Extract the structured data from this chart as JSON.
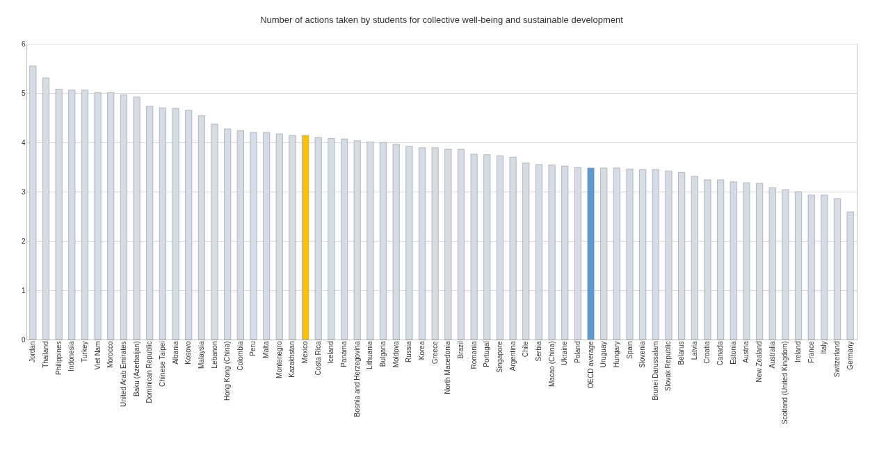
{
  "chart_data": {
    "type": "bar",
    "title": "Number of actions taken by students for collective well-being and sustainable development",
    "categories": [
      "Jordan",
      "Thailand",
      "Philippines",
      "Indonesia",
      "Turkey",
      "Viet Nam",
      "Morocco",
      "United Arab Emirates",
      "Baku (Azerbaijan)",
      "Dominican Republic",
      "Chinese Taipei",
      "Albania",
      "Kosovo",
      "Malaysia",
      "Lebanon",
      "Hong Kong (China)",
      "Colombia",
      "Peru",
      "Malta",
      "Montenegro",
      "Kazakhstan",
      "Mexico",
      "Costa Rica",
      "Iceland",
      "Panama",
      "Bosnia and Herzegovina",
      "Lithuania",
      "Bulgaria",
      "Moldova",
      "Russia",
      "Korea",
      "Greece",
      "North Macedonia",
      "Brazil",
      "Romania",
      "Portugal",
      "Singapore",
      "Argentina",
      "Chile",
      "Serbia",
      "Macao (China)",
      "Ukraine",
      "Poland",
      "OECD average",
      "Uruguay",
      "Hungary",
      "Spain",
      "Slovenia",
      "Brunei Darussalam",
      "Slovak Republic",
      "Belarus",
      "Latvia",
      "Croatia",
      "Canada",
      "Estonia",
      "Austria",
      "New Zealand",
      "Australia",
      "Scotland (United Kingdom)",
      "Ireland",
      "France",
      "Italy",
      "Switzerland",
      "Germany"
    ],
    "values": [
      5.55,
      5.31,
      5.08,
      5.06,
      5.06,
      5.01,
      5.01,
      4.96,
      4.92,
      4.73,
      4.7,
      4.69,
      4.65,
      4.54,
      4.37,
      4.27,
      4.24,
      4.2,
      4.2,
      4.17,
      4.14,
      4.14,
      4.1,
      4.08,
      4.07,
      4.03,
      4.01,
      4.0,
      3.96,
      3.92,
      3.89,
      3.89,
      3.86,
      3.86,
      3.76,
      3.75,
      3.73,
      3.7,
      3.58,
      3.55,
      3.54,
      3.52,
      3.49,
      3.48,
      3.48,
      3.48,
      3.46,
      3.45,
      3.45,
      3.42,
      3.39,
      3.31,
      3.24,
      3.24,
      3.2,
      3.18,
      3.17,
      3.08,
      3.04,
      3.0,
      2.93,
      2.93,
      2.86,
      2.59
    ],
    "colors": [
      "#d6dce4",
      "#d6dce4",
      "#d6dce4",
      "#d6dce4",
      "#d6dce4",
      "#d6dce4",
      "#d6dce4",
      "#d6dce4",
      "#d6dce4",
      "#d6dce4",
      "#d6dce4",
      "#d6dce4",
      "#d6dce4",
      "#d6dce4",
      "#d6dce4",
      "#d6dce4",
      "#d6dce4",
      "#d6dce4",
      "#d6dce4",
      "#d6dce4",
      "#d6dce4",
      "#ffc000",
      "#d6dce4",
      "#d6dce4",
      "#d6dce4",
      "#d6dce4",
      "#d6dce4",
      "#d6dce4",
      "#d6dce4",
      "#d6dce4",
      "#d6dce4",
      "#d6dce4",
      "#d6dce4",
      "#d6dce4",
      "#d6dce4",
      "#d6dce4",
      "#d6dce4",
      "#d6dce4",
      "#d6dce4",
      "#d6dce4",
      "#d6dce4",
      "#d6dce4",
      "#d6dce4",
      "#5b9bd5",
      "#d6dce4",
      "#d6dce4",
      "#d6dce4",
      "#d6dce4",
      "#d6dce4",
      "#d6dce4",
      "#d6dce4",
      "#d6dce4",
      "#d6dce4",
      "#d6dce4",
      "#d6dce4",
      "#d6dce4",
      "#d6dce4",
      "#d6dce4",
      "#d6dce4",
      "#d6dce4",
      "#d6dce4",
      "#d6dce4",
      "#d6dce4",
      "#d6dce4"
    ],
    "ylim": [
      0,
      6
    ],
    "yticks": [
      0,
      1,
      2,
      3,
      4,
      5,
      6
    ],
    "grid": "y"
  }
}
